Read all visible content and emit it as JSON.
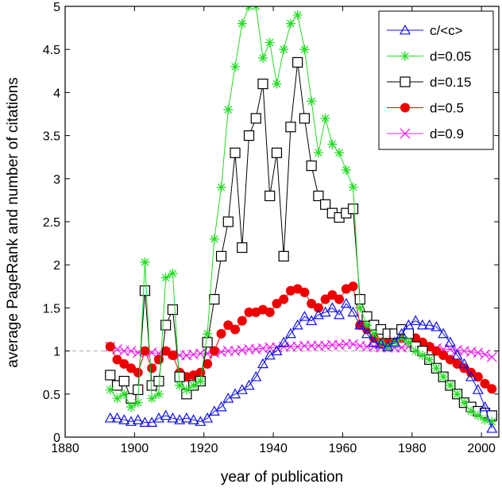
{
  "chart_data": {
    "type": "scatter",
    "title": "",
    "xlabel": "year of publication",
    "ylabel": "average PageRank and number of citations",
    "xlim": [
      1880,
      2005
    ],
    "ylim": [
      0,
      5
    ],
    "xticks": [
      1880,
      1900,
      1920,
      1940,
      1960,
      1980,
      2000
    ],
    "yticks": [
      0,
      0.5,
      1,
      1.5,
      2,
      2.5,
      3,
      3.5,
      4,
      4.5,
      5
    ],
    "xtick_labels": [
      "1880",
      "1900",
      "1920",
      "1940",
      "1960",
      "1980",
      "2000"
    ],
    "ytick_labels": [
      "0",
      "0.5",
      "1",
      "1.5",
      "2",
      "2.5",
      "3",
      "3.5",
      "4",
      "4.5",
      "5"
    ],
    "reference_line": {
      "y": 1,
      "style": "dashed",
      "color": "#aaaaaa"
    },
    "legend_position": "top-right",
    "grid": false,
    "series": [
      {
        "name": "c/<c>",
        "marker": "triangle-open",
        "color": "#1010ee",
        "x": [
          1893,
          1895,
          1897,
          1899,
          1901,
          1903,
          1905,
          1907,
          1909,
          1911,
          1913,
          1915,
          1917,
          1919,
          1921,
          1923,
          1925,
          1927,
          1929,
          1931,
          1933,
          1935,
          1937,
          1939,
          1941,
          1943,
          1945,
          1947,
          1949,
          1951,
          1953,
          1955,
          1957,
          1959,
          1961,
          1963,
          1965,
          1967,
          1969,
          1971,
          1973,
          1975,
          1977,
          1979,
          1981,
          1983,
          1985,
          1987,
          1989,
          1991,
          1993,
          1995,
          1997,
          1999,
          2001,
          2003
        ],
        "y": [
          0.22,
          0.22,
          0.2,
          0.18,
          0.2,
          0.17,
          0.17,
          0.22,
          0.25,
          0.22,
          0.2,
          0.22,
          0.2,
          0.18,
          0.22,
          0.3,
          0.35,
          0.45,
          0.5,
          0.55,
          0.6,
          0.7,
          0.85,
          0.95,
          1.0,
          1.1,
          1.2,
          1.3,
          1.4,
          1.35,
          1.42,
          1.45,
          1.5,
          1.42,
          1.55,
          1.45,
          1.3,
          1.2,
          1.1,
          1.08,
          1.05,
          1.1,
          1.2,
          1.3,
          1.35,
          1.3,
          1.3,
          1.28,
          1.2,
          1.1,
          0.95,
          0.85,
          0.7,
          0.55,
          0.35,
          0.1
        ]
      },
      {
        "name": "d=0.05",
        "marker": "star",
        "color": "#22dd22",
        "x": [
          1893,
          1895,
          1897,
          1899,
          1901,
          1903,
          1905,
          1907,
          1909,
          1911,
          1913,
          1915,
          1917,
          1919,
          1921,
          1923,
          1925,
          1927,
          1929,
          1931,
          1933,
          1935,
          1937,
          1939,
          1941,
          1943,
          1945,
          1947,
          1949,
          1951,
          1953,
          1955,
          1957,
          1959,
          1961,
          1963,
          1965,
          1967,
          1969,
          1971,
          1973,
          1975,
          1977,
          1979,
          1981,
          1983,
          1985,
          1987,
          1989,
          1991,
          1993,
          1995,
          1997,
          1999,
          2001,
          2003
        ],
        "y": [
          0.55,
          0.45,
          0.5,
          0.35,
          0.4,
          2.03,
          0.45,
          0.5,
          1.85,
          1.9,
          0.6,
          0.55,
          0.6,
          0.65,
          1.2,
          2.3,
          2.9,
          3.8,
          4.3,
          4.8,
          5.0,
          5.0,
          4.4,
          4.58,
          4.1,
          4.5,
          4.8,
          4.9,
          4.5,
          3.9,
          3.3,
          3.7,
          3.4,
          3.3,
          3.1,
          2.9,
          1.5,
          1.3,
          1.2,
          1.1,
          1.05,
          1.1,
          1.15,
          1.1,
          1.0,
          0.95,
          0.9,
          0.8,
          0.7,
          0.6,
          0.5,
          0.4,
          0.3,
          0.25,
          0.2,
          0.18
        ]
      },
      {
        "name": "d=0.15",
        "marker": "square-open",
        "color": "#000000",
        "x": [
          1893,
          1895,
          1897,
          1899,
          1901,
          1903,
          1905,
          1907,
          1909,
          1911,
          1913,
          1915,
          1917,
          1919,
          1921,
          1923,
          1925,
          1927,
          1929,
          1931,
          1933,
          1935,
          1937,
          1939,
          1941,
          1943,
          1945,
          1947,
          1949,
          1951,
          1953,
          1955,
          1957,
          1959,
          1961,
          1963,
          1965,
          1967,
          1969,
          1971,
          1973,
          1975,
          1977,
          1979,
          1981,
          1983,
          1985,
          1987,
          1989,
          1991,
          1993,
          1995,
          1997,
          1999,
          2001,
          2003
        ],
        "y": [
          0.72,
          0.6,
          0.65,
          0.45,
          0.55,
          1.7,
          0.6,
          0.65,
          1.3,
          1.48,
          0.7,
          0.5,
          0.6,
          0.65,
          1.1,
          1.6,
          2.1,
          2.5,
          3.3,
          2.2,
          3.5,
          3.7,
          4.1,
          2.8,
          3.3,
          2.1,
          3.6,
          4.35,
          3.7,
          3.15,
          2.8,
          2.7,
          2.6,
          2.55,
          2.6,
          2.65,
          1.6,
          1.4,
          1.3,
          1.25,
          1.2,
          1.2,
          1.25,
          1.2,
          1.05,
          1.0,
          0.9,
          0.8,
          0.7,
          0.6,
          0.5,
          0.4,
          0.35,
          0.3,
          0.28,
          0.25
        ]
      },
      {
        "name": "d=0.5",
        "marker": "circle-filled",
        "color": "#ee0000",
        "x": [
          1893,
          1895,
          1897,
          1899,
          1901,
          1903,
          1905,
          1907,
          1909,
          1911,
          1913,
          1915,
          1917,
          1919,
          1921,
          1923,
          1925,
          1927,
          1929,
          1931,
          1933,
          1935,
          1937,
          1939,
          1941,
          1943,
          1945,
          1947,
          1949,
          1951,
          1953,
          1955,
          1957,
          1959,
          1961,
          1963,
          1965,
          1967,
          1969,
          1971,
          1973,
          1975,
          1977,
          1979,
          1981,
          1983,
          1985,
          1987,
          1989,
          1991,
          1993,
          1995,
          1997,
          1999,
          2001,
          2003
        ],
        "y": [
          1.05,
          0.9,
          0.85,
          0.8,
          0.75,
          1.0,
          0.8,
          0.9,
          1.0,
          0.95,
          0.75,
          0.7,
          0.72,
          0.75,
          0.85,
          1.0,
          1.2,
          1.3,
          1.25,
          1.35,
          1.45,
          1.45,
          1.48,
          1.45,
          1.55,
          1.6,
          1.7,
          1.72,
          1.68,
          1.55,
          1.5,
          1.6,
          1.65,
          1.6,
          1.72,
          1.75,
          1.3,
          1.25,
          1.15,
          1.1,
          1.1,
          1.15,
          1.15,
          1.2,
          1.15,
          1.1,
          1.05,
          1.0,
          0.95,
          0.9,
          0.85,
          0.8,
          0.75,
          0.7,
          0.62,
          0.56
        ]
      },
      {
        "name": "d=0.9",
        "marker": "x",
        "color": "#ee22ee",
        "x": [
          1893,
          1895,
          1897,
          1899,
          1901,
          1903,
          1905,
          1907,
          1909,
          1911,
          1913,
          1915,
          1917,
          1919,
          1921,
          1923,
          1925,
          1927,
          1929,
          1931,
          1933,
          1935,
          1937,
          1939,
          1941,
          1943,
          1945,
          1947,
          1949,
          1951,
          1953,
          1955,
          1957,
          1959,
          1961,
          1963,
          1965,
          1967,
          1969,
          1971,
          1973,
          1975,
          1977,
          1979,
          1981,
          1983,
          1985,
          1987,
          1989,
          1991,
          1993,
          1995,
          1997,
          1999,
          2001,
          2003
        ],
        "y": [
          1.05,
          1.02,
          1.0,
          1.0,
          0.98,
          1.0,
          0.98,
          0.97,
          0.98,
          0.97,
          0.95,
          0.95,
          0.96,
          0.97,
          0.97,
          0.98,
          0.99,
          1.0,
          1.0,
          1.01,
          1.02,
          1.02,
          1.03,
          1.04,
          1.04,
          1.05,
          1.05,
          1.05,
          1.06,
          1.06,
          1.06,
          1.06,
          1.07,
          1.07,
          1.08,
          1.08,
          1.06,
          1.05,
          1.05,
          1.04,
          1.04,
          1.04,
          1.04,
          1.05,
          1.05,
          1.04,
          1.03,
          1.03,
          1.02,
          1.02,
          1.01,
          1.0,
          0.99,
          0.98,
          0.96,
          0.93
        ]
      }
    ]
  }
}
